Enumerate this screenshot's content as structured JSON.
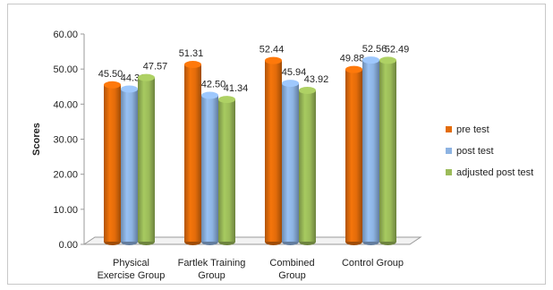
{
  "chart_data": {
    "type": "bar",
    "title": "",
    "xlabel": "",
    "ylabel": "Scores",
    "ylim": [
      0,
      60
    ],
    "yticks": [
      "0.00",
      "10.00",
      "20.00",
      "30.00",
      "40.00",
      "50.00",
      "60.00"
    ],
    "categories": [
      [
        "Physical",
        "Exercise Group"
      ],
      [
        "Fartlek Training",
        "Group"
      ],
      [
        "Combined",
        "Group"
      ],
      [
        "Control Group"
      ]
    ],
    "series": [
      {
        "name": "pre test",
        "color": "#e36c0a",
        "values": [
          45.5,
          51.31,
          52.44,
          49.88
        ],
        "labels": [
          "45.50",
          "51.31",
          "52.44",
          "49.88"
        ]
      },
      {
        "name": "post test",
        "color": "#8db3e2",
        "values": [
          44.31,
          42.5,
          45.94,
          52.56
        ],
        "labels": [
          "44.31",
          "42.50",
          "45.94",
          "52.56"
        ]
      },
      {
        "name": "adjusted post test",
        "color": "#9bbb59",
        "values": [
          47.57,
          41.34,
          43.92,
          52.49
        ],
        "labels": [
          "47.57",
          "41.34",
          "43.92",
          "52.49"
        ]
      }
    ],
    "grid": false,
    "legend_position": "right"
  }
}
